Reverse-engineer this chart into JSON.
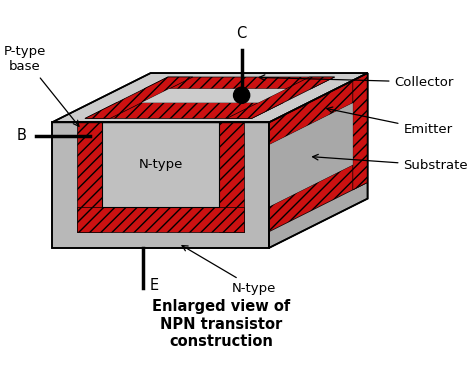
{
  "title": "Enlarged view of\nNPN transistor\nconstruction",
  "title_fontsize": 10.5,
  "bg_color": "#ffffff",
  "gray_top": "#cccccc",
  "gray_front": "#b8b8b8",
  "gray_right": "#a8a8a8",
  "gray_inner": "#c0c0c0",
  "red_color": "#cc1111",
  "labels": {
    "P_type_base": "P-type\nbase",
    "B": "B",
    "C": "C",
    "E": "E",
    "Collector": "Collector",
    "Emitter": "Emitter",
    "Substrate": "Substrate",
    "N_type_inner": "N-type",
    "N_type_outer": "N-type"
  },
  "label_fontsize": 9.5
}
